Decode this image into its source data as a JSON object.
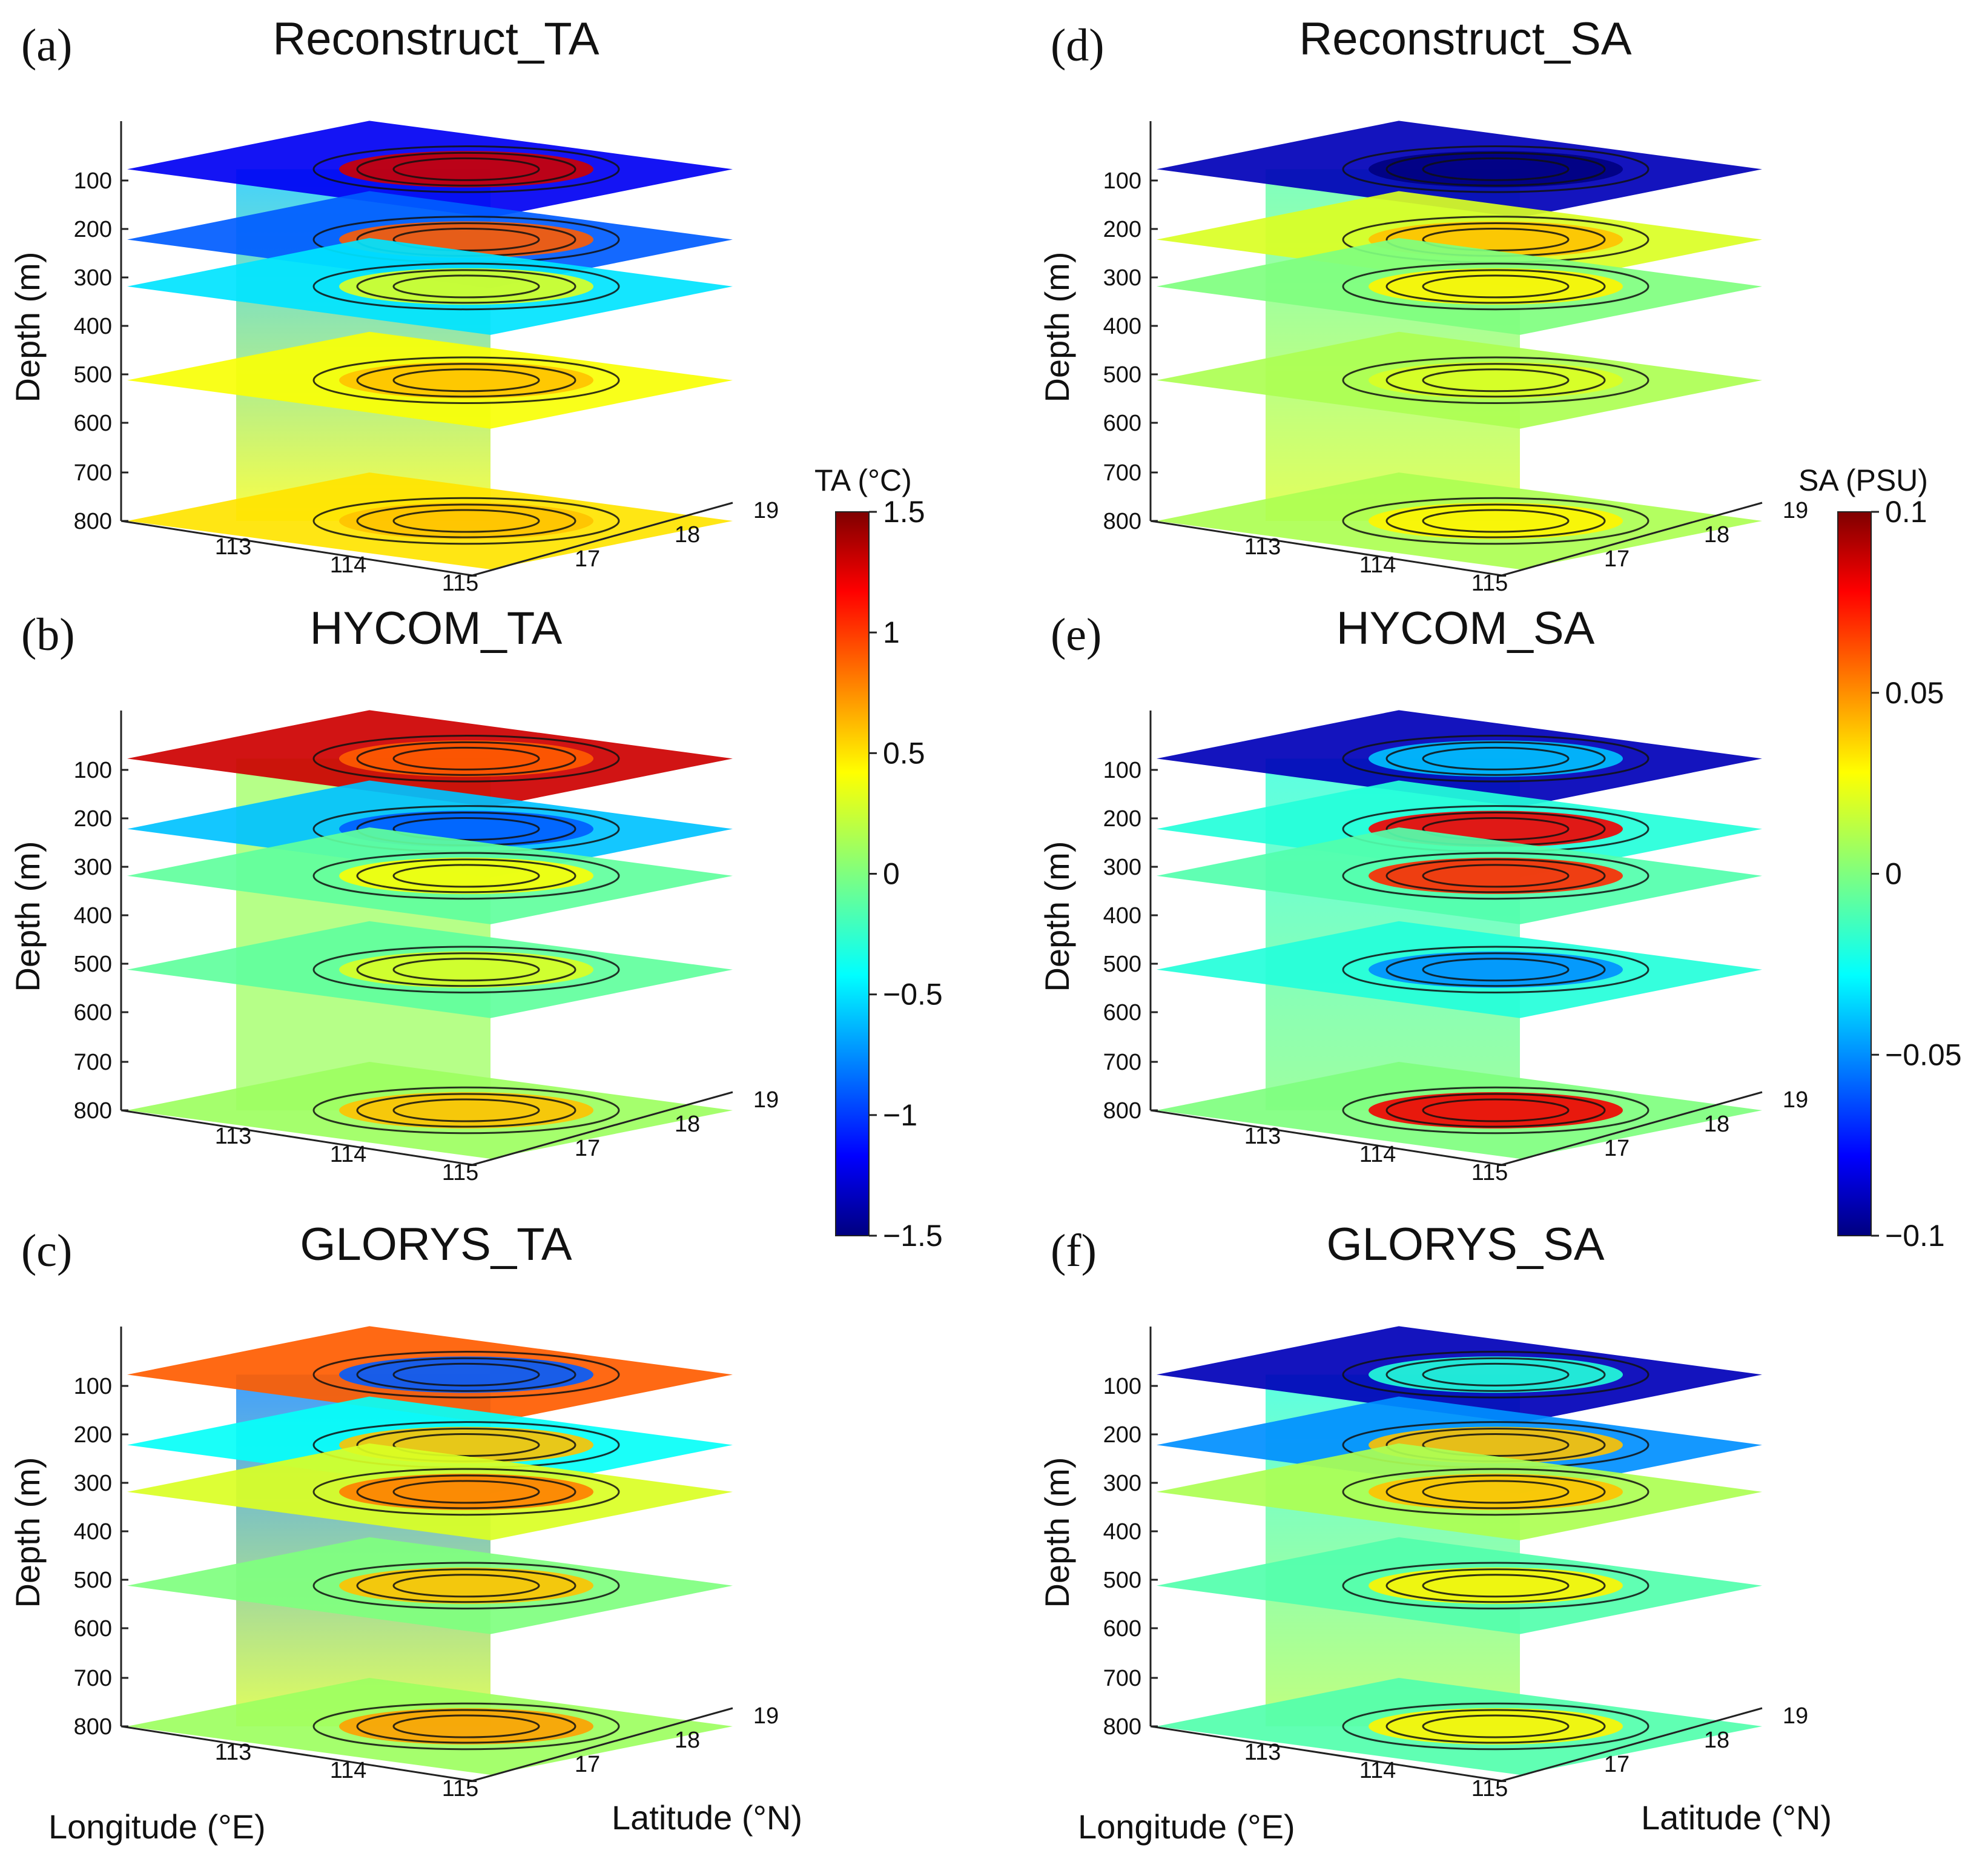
{
  "figure": {
    "x_axis_label": "Longitude (°E)",
    "y_axis_label": "Latitude (°N)",
    "depth_label": "Depth (m)"
  },
  "colorbars": [
    {
      "id": "ta",
      "title": "TA (°C)",
      "range": [
        -1.5,
        1.5
      ],
      "ticks": [
        {
          "value": 1.5,
          "label": "1.5"
        },
        {
          "value": 1,
          "label": "1"
        },
        {
          "value": 0.5,
          "label": "0.5"
        },
        {
          "value": 0,
          "label": "0"
        },
        {
          "value": -0.5,
          "label": "−0.5"
        },
        {
          "value": -1,
          "label": "−1"
        },
        {
          "value": -1.5,
          "label": "−1.5"
        }
      ]
    },
    {
      "id": "sa",
      "title": "SA (PSU)",
      "range": [
        -0.1,
        0.1
      ],
      "ticks": [
        {
          "value": 0.1,
          "label": "0.1"
        },
        {
          "value": 0.05,
          "label": "0.05"
        },
        {
          "value": 0,
          "label": "0"
        },
        {
          "value": -0.05,
          "label": "−0.05"
        },
        {
          "value": -0.1,
          "label": "−0.1"
        }
      ]
    }
  ],
  "chart_data": [
    {
      "panel": "(a)",
      "title": "Reconstruct_TA",
      "type": "heatmap",
      "variable": "TA",
      "unit": "°C",
      "depth_ticks": [
        "100",
        "200",
        "300",
        "400",
        "500",
        "600",
        "700",
        "800"
      ],
      "lon_ticks": [
        "113",
        "114",
        "115"
      ],
      "lat_ticks": [
        "17",
        "18",
        "19"
      ],
      "slices": [
        {
          "depth": 50,
          "base": -1.2,
          "feature": 1.3
        },
        {
          "depth": 200,
          "base": -0.9,
          "feature": 0.9
        },
        {
          "depth": 300,
          "base": -0.5,
          "feature": 0.3
        },
        {
          "depth": 500,
          "base": 0.4,
          "feature": 0.6
        },
        {
          "depth": 800,
          "base": 0.5,
          "feature": 0.6
        }
      ],
      "vertical_section": {
        "top": -0.6,
        "bottom": 0.4
      }
    },
    {
      "panel": "(b)",
      "title": "HYCOM_TA",
      "type": "heatmap",
      "variable": "TA",
      "unit": "°C",
      "depth_ticks": [
        "100",
        "200",
        "300",
        "400",
        "500",
        "600",
        "700",
        "800"
      ],
      "lon_ticks": [
        "113",
        "114",
        "115"
      ],
      "lat_ticks": [
        "17",
        "18",
        "19"
      ],
      "slices": [
        {
          "depth": 50,
          "base": 1.3,
          "feature": 0.9
        },
        {
          "depth": 200,
          "base": -0.6,
          "feature": -0.9
        },
        {
          "depth": 300,
          "base": -0.1,
          "feature": 0.4
        },
        {
          "depth": 500,
          "base": -0.1,
          "feature": 0.3
        },
        {
          "depth": 800,
          "base": 0.1,
          "feature": 0.6
        }
      ],
      "vertical_section": {
        "top": 0.1,
        "bottom": 0.1
      }
    },
    {
      "panel": "(c)",
      "title": "GLORYS_TA",
      "type": "heatmap",
      "variable": "TA",
      "unit": "°C",
      "depth_ticks": [
        "100",
        "200",
        "300",
        "400",
        "500",
        "600",
        "700",
        "800"
      ],
      "lon_ticks": [
        "113",
        "114",
        "115"
      ],
      "lat_ticks": [
        "17",
        "18",
        "19"
      ],
      "slices": [
        {
          "depth": 50,
          "base": 0.9,
          "feature": -0.9
        },
        {
          "depth": 200,
          "base": -0.4,
          "feature": 0.6
        },
        {
          "depth": 300,
          "base": 0.3,
          "feature": 0.8
        },
        {
          "depth": 500,
          "base": 0.0,
          "feature": 0.6
        },
        {
          "depth": 800,
          "base": 0.1,
          "feature": 0.7
        }
      ],
      "vertical_section": {
        "top": -0.8,
        "bottom": 0.3
      }
    },
    {
      "panel": "(d)",
      "title": "Reconstruct_SA",
      "type": "heatmap",
      "variable": "SA",
      "unit": "PSU",
      "depth_ticks": [
        "100",
        "200",
        "300",
        "400",
        "500",
        "600",
        "700",
        "800"
      ],
      "lon_ticks": [
        "113",
        "114",
        "115"
      ],
      "lat_ticks": [
        "17",
        "18",
        "19"
      ],
      "slices": [
        {
          "depth": 50,
          "base": -0.09,
          "feature": -0.1
        },
        {
          "depth": 200,
          "base": 0.02,
          "feature": 0.04
        },
        {
          "depth": 300,
          "base": 0.0,
          "feature": 0.03
        },
        {
          "depth": 500,
          "base": 0.01,
          "feature": 0.02
        },
        {
          "depth": 800,
          "base": 0.01,
          "feature": 0.03
        }
      ],
      "vertical_section": {
        "top": -0.01,
        "bottom": 0.02
      }
    },
    {
      "panel": "(e)",
      "title": "HYCOM_SA",
      "type": "heatmap",
      "variable": "SA",
      "unit": "PSU",
      "depth_ticks": [
        "100",
        "200",
        "300",
        "400",
        "500",
        "600",
        "700",
        "800"
      ],
      "lon_ticks": [
        "113",
        "114",
        "115"
      ],
      "lat_ticks": [
        "17",
        "18",
        "19"
      ],
      "slices": [
        {
          "depth": 50,
          "base": -0.09,
          "feature": -0.04
        },
        {
          "depth": 200,
          "base": -0.02,
          "feature": 0.08
        },
        {
          "depth": 300,
          "base": -0.01,
          "feature": 0.07
        },
        {
          "depth": 500,
          "base": -0.02,
          "feature": -0.05
        },
        {
          "depth": 800,
          "base": 0.0,
          "feature": 0.08
        }
      ],
      "vertical_section": {
        "top": -0.02,
        "bottom": 0.0
      }
    },
    {
      "panel": "(f)",
      "title": "GLORYS_SA",
      "type": "heatmap",
      "variable": "SA",
      "unit": "PSU",
      "depth_ticks": [
        "100",
        "200",
        "300",
        "400",
        "500",
        "600",
        "700",
        "800"
      ],
      "lon_ticks": [
        "113",
        "114",
        "115"
      ],
      "lat_ticks": [
        "17",
        "18",
        "19"
      ],
      "slices": [
        {
          "depth": 50,
          "base": -0.09,
          "feature": -0.02
        },
        {
          "depth": 200,
          "base": -0.05,
          "feature": 0.04
        },
        {
          "depth": 300,
          "base": 0.01,
          "feature": 0.04
        },
        {
          "depth": 500,
          "base": -0.01,
          "feature": 0.03
        },
        {
          "depth": 800,
          "base": -0.01,
          "feature": 0.03
        }
      ],
      "vertical_section": {
        "top": -0.02,
        "bottom": 0.01
      }
    }
  ]
}
